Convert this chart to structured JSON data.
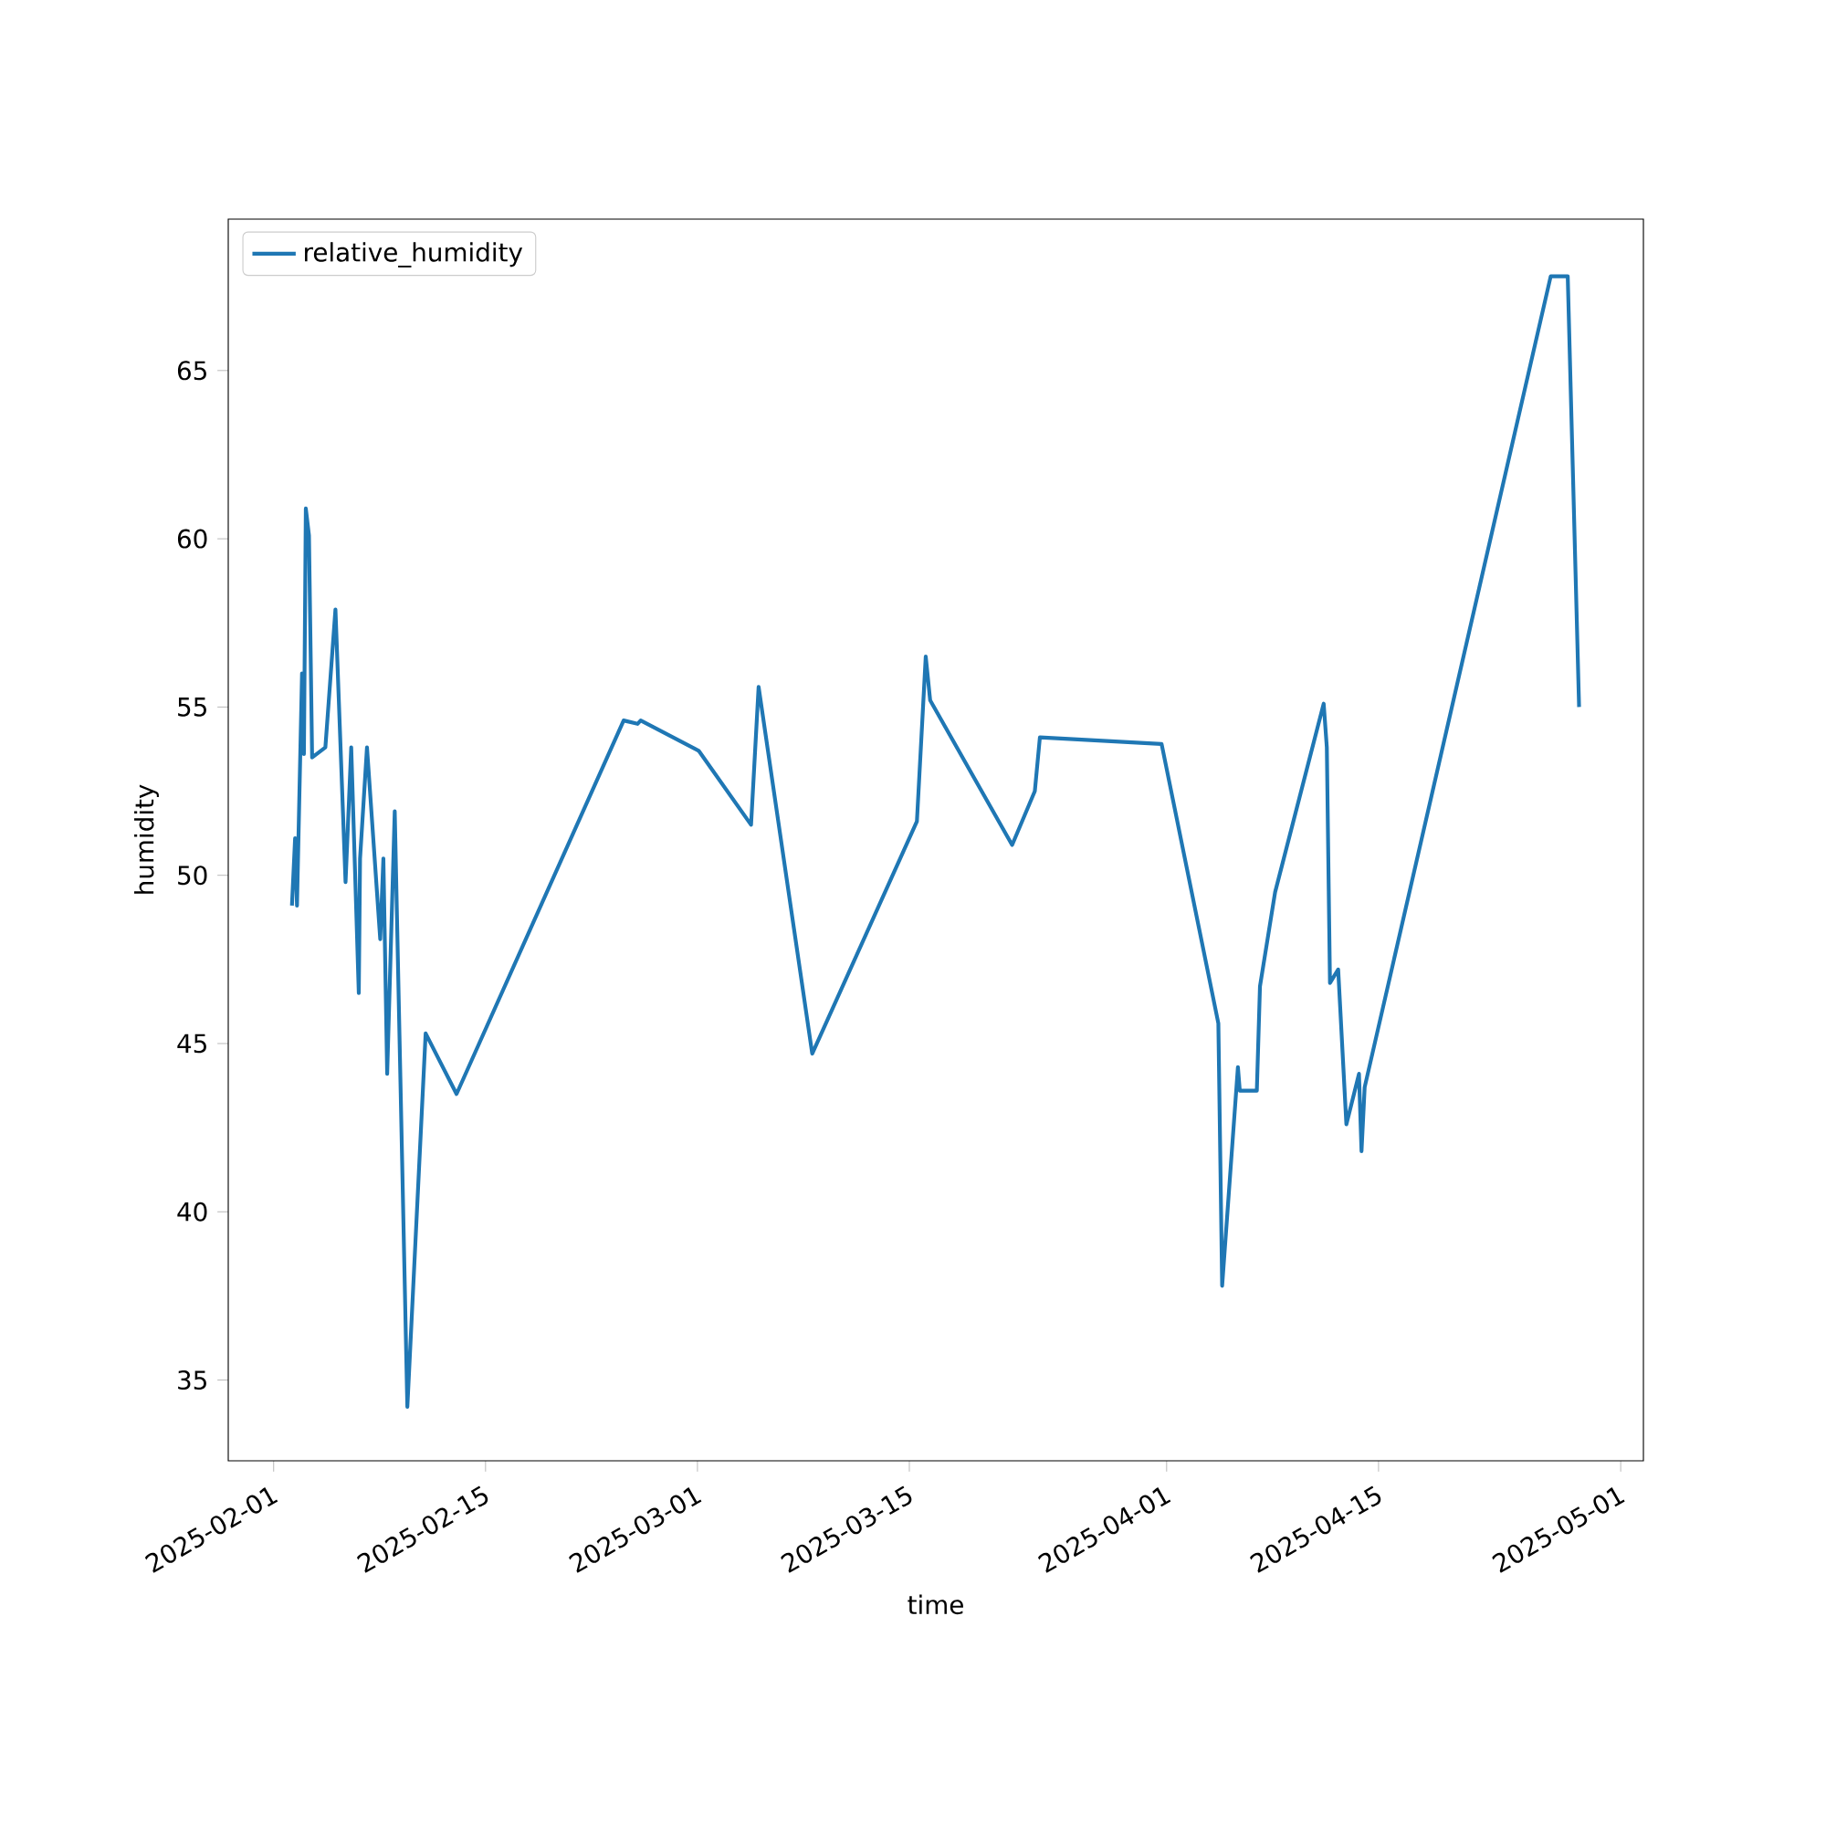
{
  "chart_data": {
    "type": "line",
    "xlabel": "time",
    "ylabel": "humidity",
    "x": [
      "2025-02-02T05:00",
      "2025-02-02T10:00",
      "2025-02-02T13:00",
      "2025-02-02T21:00",
      "2025-02-03T00:00",
      "2025-02-03T03:00",
      "2025-02-03T08:00",
      "2025-02-03T13:00",
      "2025-02-04T10:00",
      "2025-02-05T02:00",
      "2025-02-05T18:00",
      "2025-02-06T03:00",
      "2025-02-06T15:00",
      "2025-02-06T17:00",
      "2025-02-07T04:00",
      "2025-02-08T01:00",
      "2025-02-08T06:00",
      "2025-02-08T12:00",
      "2025-02-09T00:00",
      "2025-02-09T20:00",
      "2025-02-11T01:00",
      "2025-02-13T02:00",
      "2025-02-24T03:00",
      "2025-02-25T01:00",
      "2025-02-25T06:00",
      "2025-03-01T02:00",
      "2025-03-04T13:00",
      "2025-03-05T01:00",
      "2025-03-08T14:00",
      "2025-03-15T12:00",
      "2025-03-16T02:00",
      "2025-03-16T09:00",
      "2025-03-21T19:00",
      "2025-03-23T07:00",
      "2025-03-23T15:00",
      "2025-03-31T16:00",
      "2025-04-04T10:00",
      "2025-04-04T16:00",
      "2025-04-05T17:00",
      "2025-04-05T20:00",
      "2025-04-06T23:00",
      "2025-04-07T04:00",
      "2025-04-08T04:00",
      "2025-04-11T09:00",
      "2025-04-11T14:00",
      "2025-04-11T19:00",
      "2025-04-12T08:00",
      "2025-04-12T21:00",
      "2025-04-13T17:00",
      "2025-04-13T21:00",
      "2025-04-14T02:00",
      "2025-04-26T09:00",
      "2025-04-27T12:00",
      "2025-04-28T06:00"
    ],
    "series": [
      {
        "name": "relative_humidity",
        "color": "#1f77b4",
        "values": [
          49.1,
          51.1,
          49.1,
          56.0,
          53.6,
          60.9,
          60.1,
          53.5,
          53.8,
          57.9,
          49.8,
          53.8,
          46.5,
          50.5,
          53.8,
          48.1,
          50.5,
          44.1,
          51.9,
          34.2,
          45.3,
          43.5,
          54.6,
          54.5,
          54.6,
          53.7,
          51.5,
          55.6,
          44.7,
          51.6,
          56.5,
          55.2,
          50.9,
          52.5,
          54.1,
          53.9,
          45.6,
          37.8,
          44.3,
          43.6,
          43.6,
          46.7,
          49.5,
          55.1,
          53.8,
          46.8,
          47.2,
          42.6,
          44.1,
          41.8,
          43.7,
          67.8,
          67.8,
          55.0
        ]
      }
    ],
    "xlim": [
      "2025-01-29T00:00",
      "2025-05-02T12:00"
    ],
    "xticks": [
      "2025-02-01",
      "2025-02-15",
      "2025-03-01",
      "2025-03-15",
      "2025-04-01",
      "2025-04-15",
      "2025-05-01"
    ],
    "ylim": [
      32.6,
      69.5
    ],
    "yticks": [
      35,
      40,
      45,
      50,
      55,
      60,
      65
    ],
    "legend": "top left",
    "grid": false,
    "marker": "none",
    "line_style": "solid"
  }
}
